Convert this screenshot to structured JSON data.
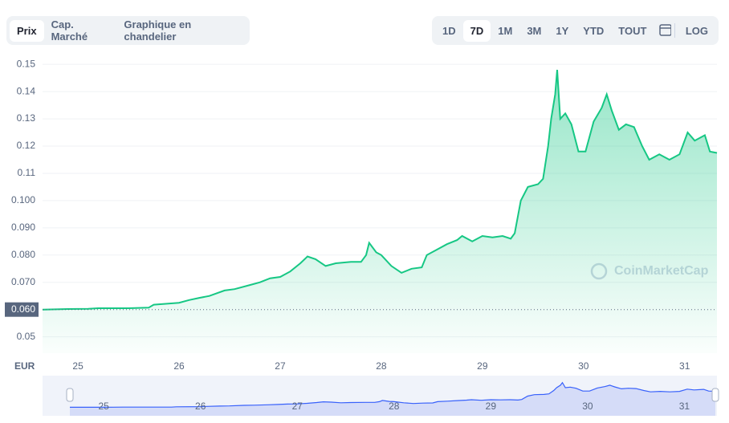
{
  "tabs": {
    "chart_types": [
      "Prix",
      "Cap. Marché",
      "Graphique en chandelier"
    ],
    "ranges": [
      "1D",
      "7D",
      "1M",
      "3M",
      "1Y",
      "YTD",
      "TOUT"
    ],
    "log": "LOG"
  },
  "chart_data": {
    "type": "line",
    "color": "#16c784",
    "currency": "EUR",
    "watermark": "CoinMarketCap",
    "x": [
      24.65,
      24.9,
      25.1,
      25.2,
      25.5,
      25.7,
      25.75,
      26.0,
      26.1,
      26.2,
      26.3,
      26.45,
      26.55,
      26.7,
      26.8,
      26.9,
      27.0,
      27.1,
      27.2,
      27.27,
      27.35,
      27.45,
      27.55,
      27.7,
      27.8,
      27.85,
      27.88,
      27.95,
      28.0,
      28.1,
      28.2,
      28.3,
      28.4,
      28.45,
      28.55,
      28.65,
      28.75,
      28.8,
      28.9,
      29.0,
      29.1,
      29.2,
      29.28,
      29.32,
      29.38,
      29.45,
      29.55,
      29.6,
      29.65,
      29.68,
      29.72,
      29.74,
      29.77,
      29.82,
      29.88,
      29.95,
      30.02,
      30.1,
      30.18,
      30.23,
      30.28,
      30.35,
      30.42,
      30.5,
      30.58,
      30.65,
      30.75,
      30.85,
      30.95,
      31.03,
      31.1,
      31.2,
      31.25,
      31.32
    ],
    "values": [
      0.06,
      0.0602,
      0.0603,
      0.0605,
      0.0605,
      0.0607,
      0.0618,
      0.0625,
      0.0635,
      0.0643,
      0.065,
      0.067,
      0.0675,
      0.069,
      0.07,
      0.0715,
      0.072,
      0.074,
      0.077,
      0.0795,
      0.0785,
      0.076,
      0.077,
      0.0775,
      0.0775,
      0.08,
      0.0845,
      0.081,
      0.08,
      0.076,
      0.0735,
      0.075,
      0.0755,
      0.08,
      0.082,
      0.084,
      0.0855,
      0.087,
      0.085,
      0.087,
      0.0865,
      0.087,
      0.086,
      0.088,
      0.1,
      0.105,
      0.106,
      0.108,
      0.12,
      0.13,
      0.139,
      0.148,
      0.13,
      0.132,
      0.128,
      0.118,
      0.118,
      0.129,
      0.134,
      0.139,
      0.133,
      0.126,
      0.128,
      0.127,
      0.12,
      0.115,
      0.117,
      0.115,
      0.117,
      0.125,
      0.122,
      0.124,
      0.118,
      0.1175
    ],
    "xlim": [
      24.65,
      31.32
    ],
    "ylim": [
      0.044,
      0.153
    ],
    "xticks": [
      25,
      26,
      27,
      28,
      29,
      30,
      31
    ],
    "yticks": [
      0.05,
      {
        "value": 0.07,
        "label": "0.070"
      },
      {
        "value": 0.08,
        "label": "0.080"
      },
      {
        "value": 0.09,
        "label": "0.090"
      },
      {
        "value": 0.1,
        "label": "0.100"
      },
      0.11,
      0.12,
      0.13,
      0.14,
      0.15
    ],
    "baseline": {
      "value": 0.06,
      "label": "0.060"
    },
    "grid": true
  }
}
